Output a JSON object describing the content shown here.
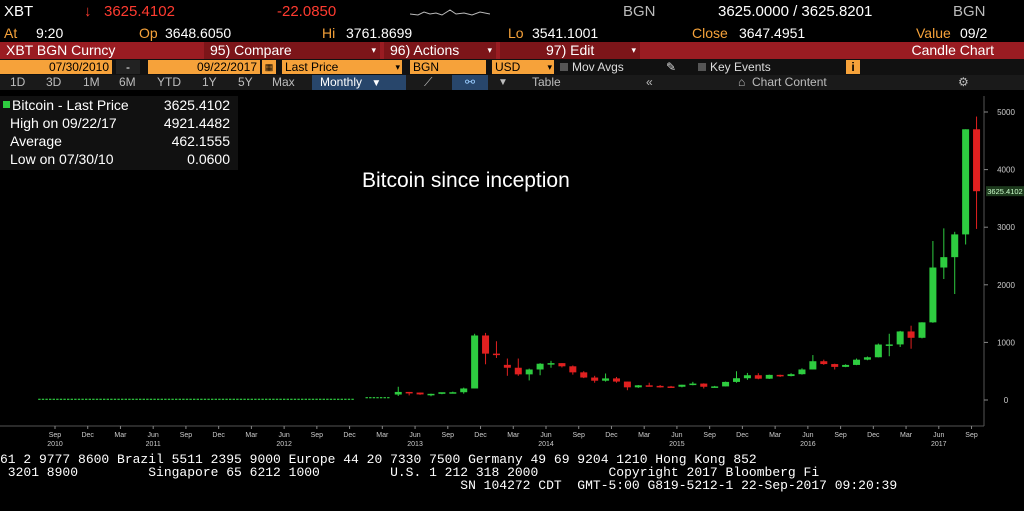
{
  "header": {
    "symbol": "XBT",
    "arrow": "↓",
    "last": "3625.4102",
    "change": "-22.0850",
    "source_left": "BGN",
    "bid_ask": "3625.0000 / 3625.8201",
    "source_right": "BGN",
    "at_label": "At",
    "time": "9:20",
    "op_label": "Op",
    "open": "3648.6050",
    "hi_label": "Hi",
    "high": "3761.8699",
    "lo_label": "Lo",
    "low": "3541.1001",
    "close_label": "Close",
    "close": "3647.4951",
    "value_label": "Value",
    "value": "09/2"
  },
  "menubar": {
    "title": "XBT BGN Curncy",
    "compare": "95) Compare",
    "actions": "96) Actions",
    "edit": "97) Edit",
    "chart_type": "Candle Chart"
  },
  "filters": {
    "start_date": "07/30/2010",
    "dash": "-",
    "end_date": "09/22/2017",
    "price_field": "Last Price",
    "source": "BGN",
    "currency": "USD",
    "mov_avgs": "Mov Avgs",
    "key_events": "Key Events"
  },
  "tabs": {
    "periods": [
      "1D",
      "3D",
      "1M",
      "6M",
      "YTD",
      "1Y",
      "5Y",
      "Max"
    ],
    "frequency": "Monthly",
    "table": "Table",
    "chart_content": "Chart Content"
  },
  "legend": {
    "series": "Bitcoin - Last Price",
    "last": "3625.4102",
    "high_label": "High on 09/22/17",
    "high": "4921.4482",
    "avg_label": "Average",
    "avg": "462.1555",
    "low_label": "Low on 07/30/10",
    "low": "0.0600"
  },
  "annotation": "Bitcoin since inception",
  "last_price_tag": "3625.4102",
  "colors": {
    "up": "#2ecc40",
    "down": "#e02020",
    "accent": "#f6a23a",
    "menubar": "#9a1c22"
  },
  "ticker": {
    "line1": "61 2 9777 8600 Brazil 5511 2395 9000 Europe 44 20 7330 7500 Germany 49 69 9204 1210 Hong Kong 852",
    "line2": " 3201 8900         Singapore 65 6212 1000         U.S. 1 212 318 2000         Copyright 2017 Bloomberg Fi",
    "line3": "                                                           SN 104272 CDT  GMT-5:00 G819-5212-1 22-Sep-2017 09:20:39"
  },
  "chart_data": {
    "type": "candlestick",
    "title": "",
    "ylim": [
      -500,
      5200
    ],
    "y_ticks": [
      0,
      1000,
      2000,
      3000,
      4000,
      5000
    ],
    "x_labels": [
      {
        "t": "Sep",
        "x": 2010.67,
        "year": "2010"
      },
      {
        "t": "Dec",
        "x": 2010.92
      },
      {
        "t": "Mar",
        "x": 2011.17
      },
      {
        "t": "Jun",
        "x": 2011.42,
        "year": "2011"
      },
      {
        "t": "Sep",
        "x": 2011.67
      },
      {
        "t": "Dec",
        "x": 2011.92
      },
      {
        "t": "Mar",
        "x": 2012.17
      },
      {
        "t": "Jun",
        "x": 2012.42,
        "year": "2012"
      },
      {
        "t": "Sep",
        "x": 2012.67
      },
      {
        "t": "Dec",
        "x": 2012.92
      },
      {
        "t": "Mar",
        "x": 2013.17
      },
      {
        "t": "Jun",
        "x": 2013.42,
        "year": "2013"
      },
      {
        "t": "Sep",
        "x": 2013.67
      },
      {
        "t": "Dec",
        "x": 2013.92
      },
      {
        "t": "Mar",
        "x": 2014.17
      },
      {
        "t": "Jun",
        "x": 2014.42,
        "year": "2014"
      },
      {
        "t": "Sep",
        "x": 2014.67
      },
      {
        "t": "Dec",
        "x": 2014.92
      },
      {
        "t": "Mar",
        "x": 2015.17
      },
      {
        "t": "Jun",
        "x": 2015.42,
        "year": "2015"
      },
      {
        "t": "Sep",
        "x": 2015.67
      },
      {
        "t": "Dec",
        "x": 2015.92
      },
      {
        "t": "Mar",
        "x": 2016.17
      },
      {
        "t": "Jun",
        "x": 2016.42,
        "year": "2016"
      },
      {
        "t": "Sep",
        "x": 2016.67
      },
      {
        "t": "Dec",
        "x": 2016.92
      },
      {
        "t": "Mar",
        "x": 2017.17
      },
      {
        "t": "Jun",
        "x": 2017.42,
        "year": "2017"
      },
      {
        "t": "Sep",
        "x": 2017.67
      }
    ],
    "candles": [
      {
        "d": "2013-04",
        "o": 95,
        "h": 230,
        "l": 70,
        "c": 140
      },
      {
        "d": "2013-05",
        "o": 140,
        "h": 140,
        "l": 80,
        "c": 129
      },
      {
        "d": "2013-06",
        "o": 129,
        "h": 130,
        "l": 90,
        "c": 97
      },
      {
        "d": "2013-07",
        "o": 97,
        "h": 110,
        "l": 65,
        "c": 107
      },
      {
        "d": "2013-08",
        "o": 107,
        "h": 130,
        "l": 100,
        "c": 135
      },
      {
        "d": "2013-09",
        "o": 135,
        "h": 145,
        "l": 120,
        "c": 135
      },
      {
        "d": "2013-10",
        "o": 135,
        "h": 215,
        "l": 110,
        "c": 200
      },
      {
        "d": "2013-11",
        "o": 200,
        "h": 1150,
        "l": 200,
        "c": 1120
      },
      {
        "d": "2013-12",
        "o": 1120,
        "h": 1165,
        "l": 620,
        "c": 805
      },
      {
        "d": "2014-01",
        "o": 805,
        "h": 1020,
        "l": 730,
        "c": 800
      },
      {
        "d": "2014-02",
        "o": 610,
        "h": 720,
        "l": 420,
        "c": 560
      },
      {
        "d": "2014-03",
        "o": 560,
        "h": 720,
        "l": 420,
        "c": 445
      },
      {
        "d": "2014-04",
        "o": 445,
        "h": 545,
        "l": 340,
        "c": 530
      },
      {
        "d": "2014-05",
        "o": 530,
        "h": 640,
        "l": 430,
        "c": 630
      },
      {
        "d": "2014-06",
        "o": 630,
        "h": 680,
        "l": 560,
        "c": 640
      },
      {
        "d": "2014-07",
        "o": 640,
        "h": 640,
        "l": 565,
        "c": 585
      },
      {
        "d": "2014-08",
        "o": 585,
        "h": 600,
        "l": 440,
        "c": 480
      },
      {
        "d": "2014-09",
        "o": 480,
        "h": 500,
        "l": 380,
        "c": 390
      },
      {
        "d": "2014-10",
        "o": 390,
        "h": 420,
        "l": 300,
        "c": 335
      },
      {
        "d": "2014-11",
        "o": 335,
        "h": 460,
        "l": 320,
        "c": 375
      },
      {
        "d": "2014-12",
        "o": 375,
        "h": 400,
        "l": 300,
        "c": 320
      },
      {
        "d": "2015-01",
        "o": 320,
        "h": 320,
        "l": 170,
        "c": 220
      },
      {
        "d": "2015-02",
        "o": 220,
        "h": 260,
        "l": 210,
        "c": 255
      },
      {
        "d": "2015-03",
        "o": 255,
        "h": 300,
        "l": 240,
        "c": 245
      },
      {
        "d": "2015-04",
        "o": 245,
        "h": 260,
        "l": 215,
        "c": 235
      },
      {
        "d": "2015-05",
        "o": 235,
        "h": 245,
        "l": 225,
        "c": 230
      },
      {
        "d": "2015-06",
        "o": 230,
        "h": 265,
        "l": 220,
        "c": 265
      },
      {
        "d": "2015-07",
        "o": 265,
        "h": 315,
        "l": 255,
        "c": 285
      },
      {
        "d": "2015-08",
        "o": 285,
        "h": 290,
        "l": 200,
        "c": 230
      },
      {
        "d": "2015-09",
        "o": 230,
        "h": 245,
        "l": 225,
        "c": 236
      },
      {
        "d": "2015-10",
        "o": 236,
        "h": 320,
        "l": 235,
        "c": 314
      },
      {
        "d": "2015-11",
        "o": 314,
        "h": 500,
        "l": 300,
        "c": 378
      },
      {
        "d": "2015-12",
        "o": 378,
        "h": 470,
        "l": 350,
        "c": 430
      },
      {
        "d": "2016-01",
        "o": 430,
        "h": 465,
        "l": 360,
        "c": 370
      },
      {
        "d": "2016-02",
        "o": 370,
        "h": 440,
        "l": 365,
        "c": 436
      },
      {
        "d": "2016-03",
        "o": 436,
        "h": 440,
        "l": 400,
        "c": 416
      },
      {
        "d": "2016-04",
        "o": 416,
        "h": 465,
        "l": 410,
        "c": 448
      },
      {
        "d": "2016-05",
        "o": 448,
        "h": 550,
        "l": 440,
        "c": 530
      },
      {
        "d": "2016-06",
        "o": 530,
        "h": 780,
        "l": 530,
        "c": 673
      },
      {
        "d": "2016-07",
        "o": 673,
        "h": 700,
        "l": 610,
        "c": 624
      },
      {
        "d": "2016-08",
        "o": 624,
        "h": 630,
        "l": 530,
        "c": 575
      },
      {
        "d": "2016-09",
        "o": 575,
        "h": 620,
        "l": 570,
        "c": 609
      },
      {
        "d": "2016-10",
        "o": 609,
        "h": 720,
        "l": 605,
        "c": 700
      },
      {
        "d": "2016-11",
        "o": 700,
        "h": 755,
        "l": 690,
        "c": 742
      },
      {
        "d": "2016-12",
        "o": 742,
        "h": 980,
        "l": 740,
        "c": 963
      },
      {
        "d": "2017-01",
        "o": 963,
        "h": 1150,
        "l": 760,
        "c": 965
      },
      {
        "d": "2017-02",
        "o": 965,
        "h": 1200,
        "l": 920,
        "c": 1190
      },
      {
        "d": "2017-03",
        "o": 1190,
        "h": 1290,
        "l": 890,
        "c": 1080
      },
      {
        "d": "2017-04",
        "o": 1080,
        "h": 1350,
        "l": 1070,
        "c": 1348
      },
      {
        "d": "2017-05",
        "o": 1348,
        "h": 2760,
        "l": 1340,
        "c": 2300
      },
      {
        "d": "2017-06",
        "o": 2300,
        "h": 2980,
        "l": 2100,
        "c": 2480
      },
      {
        "d": "2017-07",
        "o": 2480,
        "h": 2920,
        "l": 1840,
        "c": 2875
      },
      {
        "d": "2017-08",
        "o": 2875,
        "h": 4700,
        "l": 2700,
        "c": 4700
      },
      {
        "d": "2017-09",
        "o": 4700,
        "h": 4921,
        "l": 2970,
        "c": 3625
      }
    ],
    "flat_segments": [
      {
        "from": "2010-07",
        "to": "2012-12",
        "level": 12
      },
      {
        "from": "2013-01",
        "to": "2013-03",
        "level": 40
      }
    ]
  }
}
